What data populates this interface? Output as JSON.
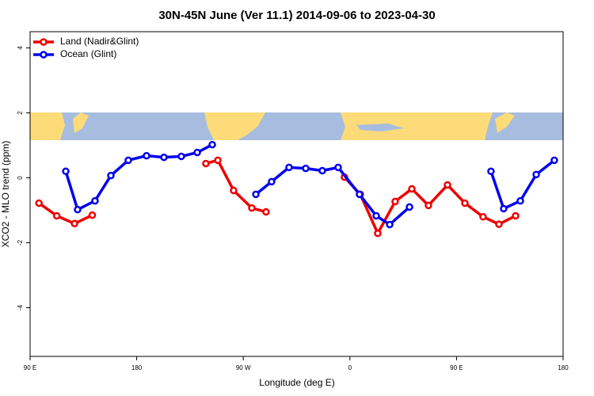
{
  "chart_data": {
    "type": "line",
    "title": "30N-45N June (Ver 11.1)   2014-09-06 to 2023-04-30",
    "x_label": "Longitude (deg E)",
    "y_label": "XCO2 - MLO trend (ppm)",
    "xlim": [
      90,
      540
    ],
    "xticks": [
      {
        "value": 90,
        "label": "90 E"
      },
      180,
      {
        "value": 270,
        "label": "90 W"
      },
      {
        "value": 360,
        "label": "0"
      },
      {
        "value": 450,
        "label": "90 E"
      },
      {
        "value": 540,
        "label": "180"
      }
    ],
    "ylim": [
      -5.5,
      4.5
    ],
    "yticks": [
      -4,
      -2,
      0,
      2,
      4
    ],
    "legend": "top-left",
    "series": [
      {
        "name": "Land (Nadir&Glint)",
        "color": "#ee0000",
        "x": [
          97.5,
          112.5,
          127.5,
          142.5,
          null,
          238.4,
          248.5,
          261.8,
          277.2,
          289.2,
          null,
          355.4,
          368.8,
          383.5,
          398.2,
          412.3,
          426.3,
          442.4,
          457.1,
          472.4,
          485.8,
          499.9
        ],
        "values": [
          -0.78,
          -1.17,
          -1.41,
          -1.15,
          null,
          0.44,
          0.54,
          -0.39,
          -0.93,
          -1.05,
          null,
          0.02,
          -0.51,
          -1.71,
          -0.73,
          -0.34,
          -0.85,
          -0.22,
          -0.78,
          -1.2,
          -1.43,
          -1.17
        ]
      },
      {
        "name": "Ocean (Glint)",
        "color": "#0000ee",
        "x": [
          120.1,
          130.1,
          144.8,
          158.2,
          172.9,
          188.3,
          203,
          217.7,
          231.1,
          243.8,
          null,
          280.6,
          293.9,
          308.6,
          322.7,
          336.7,
          350.1,
          368.1,
          382.2,
          393.6,
          410.3,
          null,
          479.1,
          489.8,
          503.9,
          517.3,
          532.6
        ],
        "values": [
          0.2,
          -0.98,
          -0.71,
          0.07,
          0.54,
          0.68,
          0.63,
          0.66,
          0.78,
          1.02,
          null,
          -0.51,
          -0.12,
          0.32,
          0.29,
          0.22,
          0.32,
          -0.51,
          -1.17,
          -1.44,
          -0.9,
          null,
          0.2,
          -0.95,
          -0.71,
          0.1,
          0.54
        ]
      }
    ]
  }
}
